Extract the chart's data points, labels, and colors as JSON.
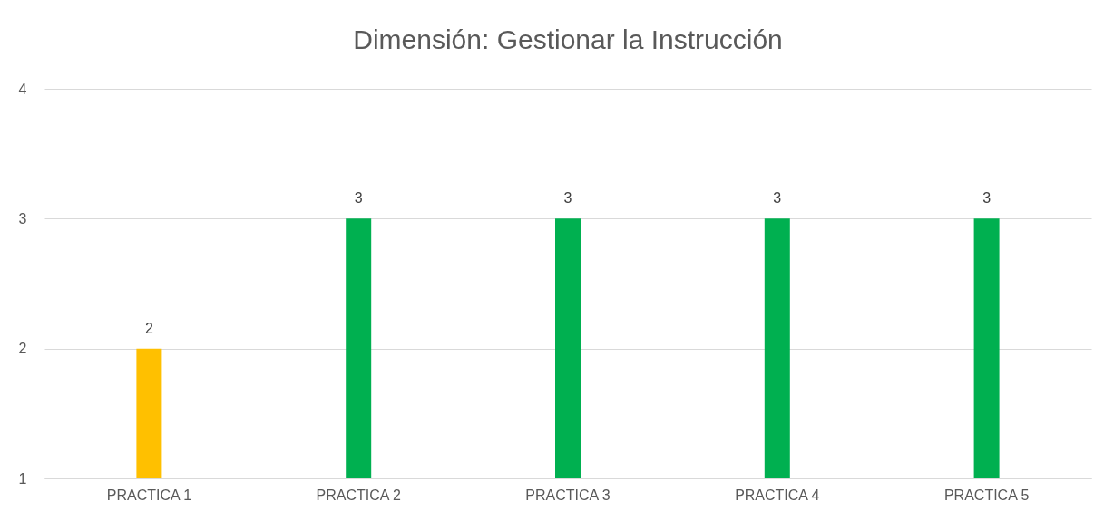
{
  "chart_data": {
    "type": "bar",
    "title": "Dimensión: Gestionar la Instrucción",
    "categories": [
      "PRACTICA 1",
      "PRACTICA 2",
      "PRACTICA 3",
      "PRACTICA 4",
      "PRACTICA 5"
    ],
    "values": [
      2,
      3,
      3,
      3,
      3
    ],
    "colors": [
      "#ffc000",
      "#00b050",
      "#00b050",
      "#00b050",
      "#00b050"
    ],
    "ylim": [
      1,
      4
    ],
    "yticks": [
      1,
      2,
      3,
      4
    ],
    "grid": "y",
    "data_labels": true
  }
}
